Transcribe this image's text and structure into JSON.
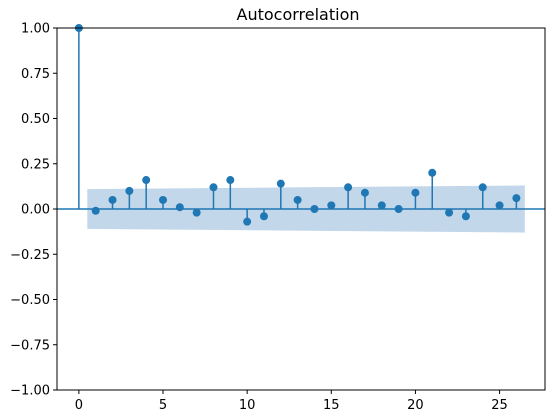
{
  "chart_data": {
    "type": "stem",
    "title": "Autocorrelation",
    "xlabel": "",
    "ylabel": "",
    "xlim": [
      -1.3,
      27.7
    ],
    "ylim": [
      -1.0,
      1.0
    ],
    "xticks": [
      0,
      5,
      10,
      15,
      20,
      25
    ],
    "xtick_labels": [
      "0",
      "5",
      "10",
      "15",
      "20",
      "25"
    ],
    "yticks": [
      1.0,
      0.75,
      0.5,
      0.25,
      0.0,
      -0.25,
      -0.5,
      -0.75,
      -1.0
    ],
    "ytick_labels": [
      "1.00",
      "0.75",
      "0.50",
      "0.25",
      "0.00",
      "−0.25",
      "−0.50",
      "−0.75",
      "−1.00"
    ],
    "grid": false,
    "colors": {
      "stem": "#1f77b4",
      "band": "#b3cde3",
      "axis": "#000000"
    },
    "series": [
      {
        "lags": [
          0,
          1,
          2,
          3,
          4,
          5,
          6,
          7,
          8,
          9,
          10,
          11,
          12,
          13,
          14,
          15,
          16,
          17,
          18,
          19,
          20,
          21,
          22,
          23,
          24,
          25,
          26
        ],
        "values": [
          1.0,
          -0.01,
          0.05,
          0.1,
          0.16,
          0.05,
          0.01,
          -0.02,
          0.12,
          0.16,
          -0.07,
          -0.04,
          0.14,
          0.05,
          0.0,
          0.02,
          0.12,
          0.09,
          0.02,
          0.0,
          0.09,
          0.2,
          -0.02,
          -0.04,
          0.12,
          0.02,
          0.06
        ]
      }
    ],
    "confidence_band": {
      "lags": [
        0.5,
        26.5
      ],
      "upper": [
        0.11,
        0.12,
        0.13
      ],
      "lower": [
        -0.11,
        -0.12,
        -0.13
      ],
      "band_lags": [
        0.5,
        13.5,
        26.5
      ]
    }
  }
}
